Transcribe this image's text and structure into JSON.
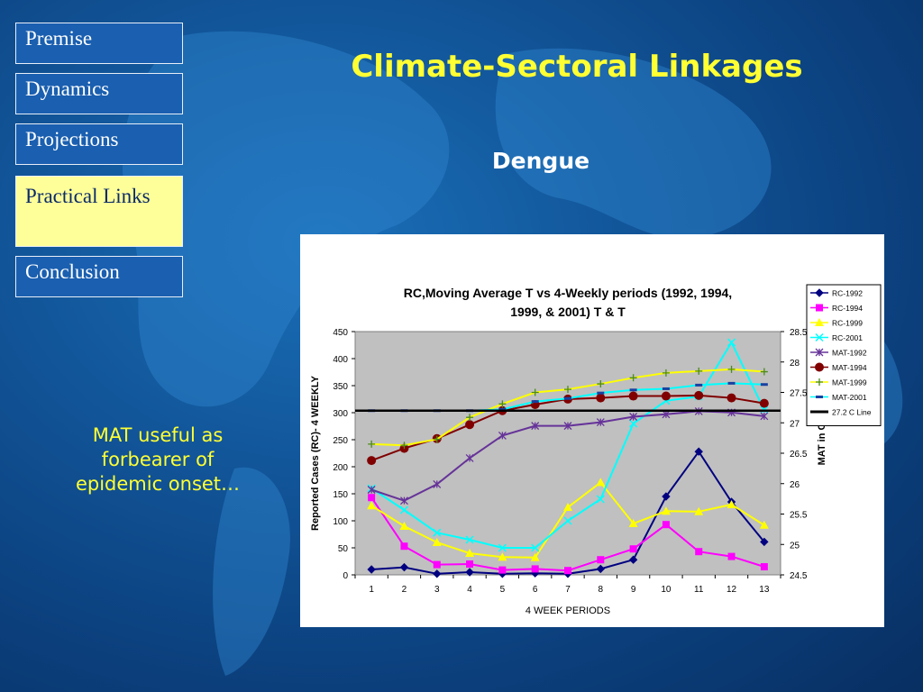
{
  "nav": [
    {
      "label": "Premise",
      "active": false
    },
    {
      "label": "Dynamics",
      "active": false
    },
    {
      "label": "Projections",
      "active": false
    },
    {
      "label": "Practical Links",
      "active": true
    },
    {
      "label": "Conclusion",
      "active": false
    }
  ],
  "slide": {
    "title": "Climate-Sectoral Linkages",
    "subtitle": "Dengue",
    "note": "MAT useful as forbearer of epidemic onset…"
  },
  "colors": {
    "nav_active_bg": "#ffff99",
    "title": "#ffff33",
    "plot_bg": "#c0c0c0"
  },
  "chart_data": {
    "type": "line",
    "title": "RC,Moving Average T vs 4-Weekly periods (1992, 1994, 1999, & 2001) T & T",
    "xlabel": "4 WEEK PERIODS",
    "ylabel": "Reported Cases (RC)- 4 WEEKLY",
    "y2label": "MAT in C",
    "x": [
      1,
      2,
      3,
      4,
      5,
      6,
      7,
      8,
      9,
      10,
      11,
      12,
      13
    ],
    "ylim": [
      0,
      450
    ],
    "yticks": [
      0,
      50,
      100,
      150,
      200,
      250,
      300,
      350,
      400,
      450
    ],
    "y2lim": [
      24.5,
      28.5
    ],
    "y2ticks": [
      "24.5",
      "25",
      "25.5",
      "26",
      "26.5",
      "27",
      "27.5",
      "28",
      "28.5"
    ],
    "grid": false,
    "legend_position": "right",
    "series": [
      {
        "name": "RC-1992",
        "axis": "left",
        "color": "#000080",
        "marker": "diamond",
        "values": [
          10,
          14,
          2,
          5,
          2,
          3,
          2,
          11,
          28,
          145,
          228,
          135,
          61
        ]
      },
      {
        "name": "RC-1994",
        "axis": "left",
        "color": "#ff00ff",
        "marker": "square",
        "values": [
          143,
          53,
          19,
          20,
          9,
          11,
          8,
          28,
          48,
          93,
          43,
          34,
          15
        ]
      },
      {
        "name": "RC-1999",
        "axis": "left",
        "color": "#ffff00",
        "marker": "triangle",
        "values": [
          128,
          90,
          60,
          40,
          33,
          32,
          125,
          171,
          95,
          118,
          117,
          130,
          92
        ]
      },
      {
        "name": "RC-2001",
        "axis": "left",
        "color": "#00ffff",
        "marker": "x",
        "values": [
          160,
          120,
          78,
          65,
          50,
          50,
          100,
          140,
          280,
          322,
          330,
          430,
          305
        ]
      },
      {
        "name": "MAT-1992",
        "axis": "right",
        "color": "#663399",
        "marker": "star",
        "values": [
          25.9,
          25.72,
          25.99,
          26.42,
          26.79,
          26.95,
          26.95,
          27.01,
          27.1,
          27.14,
          27.19,
          27.17,
          27.11
        ]
      },
      {
        "name": "MAT-1994",
        "axis": "right",
        "color": "#800000",
        "marker": "circle",
        "values": [
          26.38,
          26.58,
          26.74,
          26.97,
          27.2,
          27.3,
          27.39,
          27.41,
          27.44,
          27.44,
          27.45,
          27.41,
          27.32
        ]
      },
      {
        "name": "MAT-1999",
        "axis": "right",
        "color": "#ffff00",
        "marker": "plus",
        "values": [
          26.65,
          26.63,
          26.73,
          27.09,
          27.31,
          27.5,
          27.55,
          27.64,
          27.74,
          27.82,
          27.85,
          27.88,
          27.84
        ]
      },
      {
        "name": "MAT-2001",
        "axis": "right",
        "color": "#00ffff",
        "marker": "dash",
        "values": [
          27.2,
          27.2,
          27.2,
          27.2,
          27.22,
          27.35,
          27.4,
          27.49,
          27.54,
          27.56,
          27.62,
          27.65,
          27.63
        ]
      },
      {
        "name": "27.2 C Line",
        "axis": "right",
        "color": "#000000",
        "marker": "line",
        "values": [
          27.2,
          27.2,
          27.2,
          27.2,
          27.2,
          27.2,
          27.2,
          27.2,
          27.2,
          27.2,
          27.2,
          27.2,
          27.2
        ]
      }
    ]
  }
}
